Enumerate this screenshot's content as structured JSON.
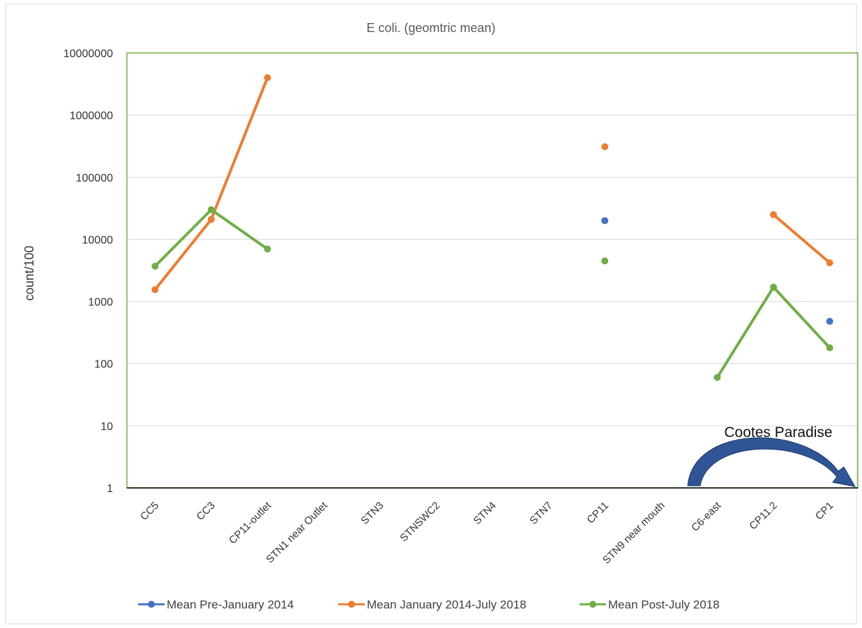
{
  "chart_data": {
    "type": "line",
    "title": "E coli. (geomtric mean)",
    "xlabel": "",
    "ylabel": "count/100",
    "yscale": "log",
    "ylim": [
      1,
      10000000
    ],
    "y_ticks": [
      {
        "value": 1,
        "label": "1"
      },
      {
        "value": 10,
        "label": "10"
      },
      {
        "value": 100,
        "label": "100"
      },
      {
        "value": 1000,
        "label": "1000"
      },
      {
        "value": 10000,
        "label": "10000"
      },
      {
        "value": 100000,
        "label": "100000"
      },
      {
        "value": 1000000,
        "label": "1000000"
      },
      {
        "value": 10000000,
        "label": "10000000"
      }
    ],
    "grid": true,
    "legend_position": "bottom",
    "categories": [
      "CC5",
      "CC3",
      "CP11-outlet",
      "STN1 near Outlet",
      "STN3",
      "STNSWC2",
      "STN4",
      "STN7",
      "CP11",
      "STN9 near mouth",
      "C6-east",
      "CP11.2",
      "CP1"
    ],
    "series": [
      {
        "name": "Mean Pre-January 2014",
        "color": "#4472C4",
        "values": [
          null,
          null,
          null,
          null,
          null,
          null,
          null,
          null,
          20000,
          null,
          null,
          null,
          480
        ]
      },
      {
        "name": "Mean January 2014-July 2018",
        "color": "#ED7D31",
        "values": [
          1550,
          21000,
          4000000,
          null,
          null,
          null,
          null,
          null,
          310000,
          null,
          null,
          25000,
          4200
        ]
      },
      {
        "name": "Mean Post-July 2018",
        "color": "#70AD47",
        "values": [
          3700,
          30000,
          7000,
          null,
          null,
          null,
          null,
          null,
          4500,
          null,
          60,
          1700,
          180
        ]
      }
    ],
    "annotations": [
      {
        "text": "Cootes Paradise",
        "shape": "curved-arrow",
        "color": "#2F5597",
        "spans_categories": [
          "C6-east",
          "CP1"
        ]
      }
    ]
  }
}
